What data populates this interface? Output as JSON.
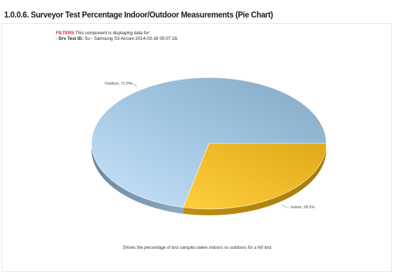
{
  "title": "1.0.0.6. Surveyor Test Percentage Indoor/Outdoor Measurements (Pie Chart)",
  "filters": {
    "label": "FILTERS",
    "text": " This component is displaying data for:",
    "item_prefix": "- ",
    "item_label": "Drv Test ID:",
    "item_value": " Su - Samsung S3 Aircoin 2014-03-28 05:07:28."
  },
  "caption": "Shows the percentage of test samples taken indoors vs outdoors for a NII test",
  "colors": {
    "outdoor": "#9cc3e0",
    "indoor": "#f0b823",
    "background": "#ffffff"
  },
  "chart_data": {
    "type": "pie",
    "title": "",
    "style": "3d-tilted",
    "slices": [
      {
        "label": "Outdoor",
        "value": 71.5,
        "display": "Outdoor, 71.5%"
      },
      {
        "label": "Indoor",
        "value": 28.5,
        "display": "Indoor, 28.5%"
      }
    ]
  }
}
